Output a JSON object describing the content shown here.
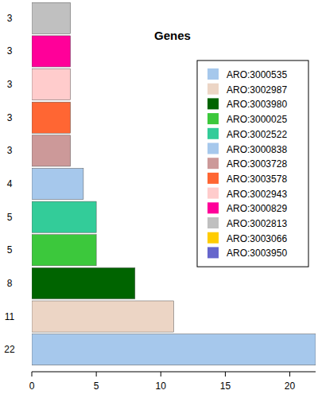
{
  "chart_data": {
    "type": "bar",
    "title": "Genes",
    "orientation": "horizontal",
    "categories": [
      "22",
      "11",
      "8",
      "5",
      "5",
      "4",
      "3",
      "3",
      "3",
      "3",
      "3"
    ],
    "series": [
      {
        "name": "ARO:3000535",
        "color": "#a6c8ec",
        "values": [
          22,
          null,
          null,
          null,
          null,
          null,
          null,
          null,
          null,
          null,
          null
        ]
      },
      {
        "name": "ARO:3002987",
        "color": "#ecd5c5",
        "values": [
          null,
          11,
          null,
          null,
          null,
          null,
          null,
          null,
          null,
          null,
          null
        ]
      },
      {
        "name": "ARO:3003980",
        "color": "#006400",
        "values": [
          null,
          null,
          8,
          null,
          null,
          null,
          null,
          null,
          null,
          null,
          null
        ]
      },
      {
        "name": "ARO:3000025",
        "color": "#3cc83c",
        "values": [
          null,
          null,
          null,
          5,
          null,
          null,
          null,
          null,
          null,
          null,
          null
        ]
      },
      {
        "name": "ARO:3002522",
        "color": "#33cc99",
        "values": [
          null,
          null,
          null,
          null,
          5,
          null,
          null,
          null,
          null,
          null,
          null
        ]
      },
      {
        "name": "ARO:3000838",
        "color": "#a6c8ec",
        "values": [
          null,
          null,
          null,
          null,
          null,
          4,
          null,
          null,
          null,
          null,
          null
        ]
      },
      {
        "name": "ARO:3003728",
        "color": "#cc9999",
        "values": [
          null,
          null,
          null,
          null,
          null,
          null,
          3,
          null,
          null,
          null,
          null
        ]
      },
      {
        "name": "ARO:3003578",
        "color": "#ff6633",
        "values": [
          null,
          null,
          null,
          null,
          null,
          null,
          null,
          3,
          null,
          null,
          null
        ]
      },
      {
        "name": "ARO:3002943",
        "color": "#ffcccc",
        "values": [
          null,
          null,
          null,
          null,
          null,
          null,
          null,
          null,
          3,
          null,
          null
        ]
      },
      {
        "name": "ARO:3000829",
        "color": "#ff0099",
        "values": [
          null,
          null,
          null,
          null,
          null,
          null,
          null,
          null,
          null,
          3,
          null
        ]
      },
      {
        "name": "ARO:3002813",
        "color": "#c0c0c0",
        "values": [
          null,
          null,
          null,
          null,
          null,
          null,
          null,
          null,
          null,
          null,
          3
        ]
      },
      {
        "name": "ARO:3003066",
        "color": "#ffcc00",
        "values": [
          null,
          null,
          null,
          null,
          null,
          null,
          null,
          null,
          null,
          null,
          null
        ]
      },
      {
        "name": "ARO:3003950",
        "color": "#6666cc",
        "values": [
          null,
          null,
          null,
          null,
          null,
          null,
          null,
          null,
          null,
          null,
          null
        ]
      }
    ],
    "xlim": [
      0,
      22
    ],
    "xticks": [
      0,
      5,
      10,
      15,
      20
    ],
    "legend": "topright",
    "grid": false
  }
}
